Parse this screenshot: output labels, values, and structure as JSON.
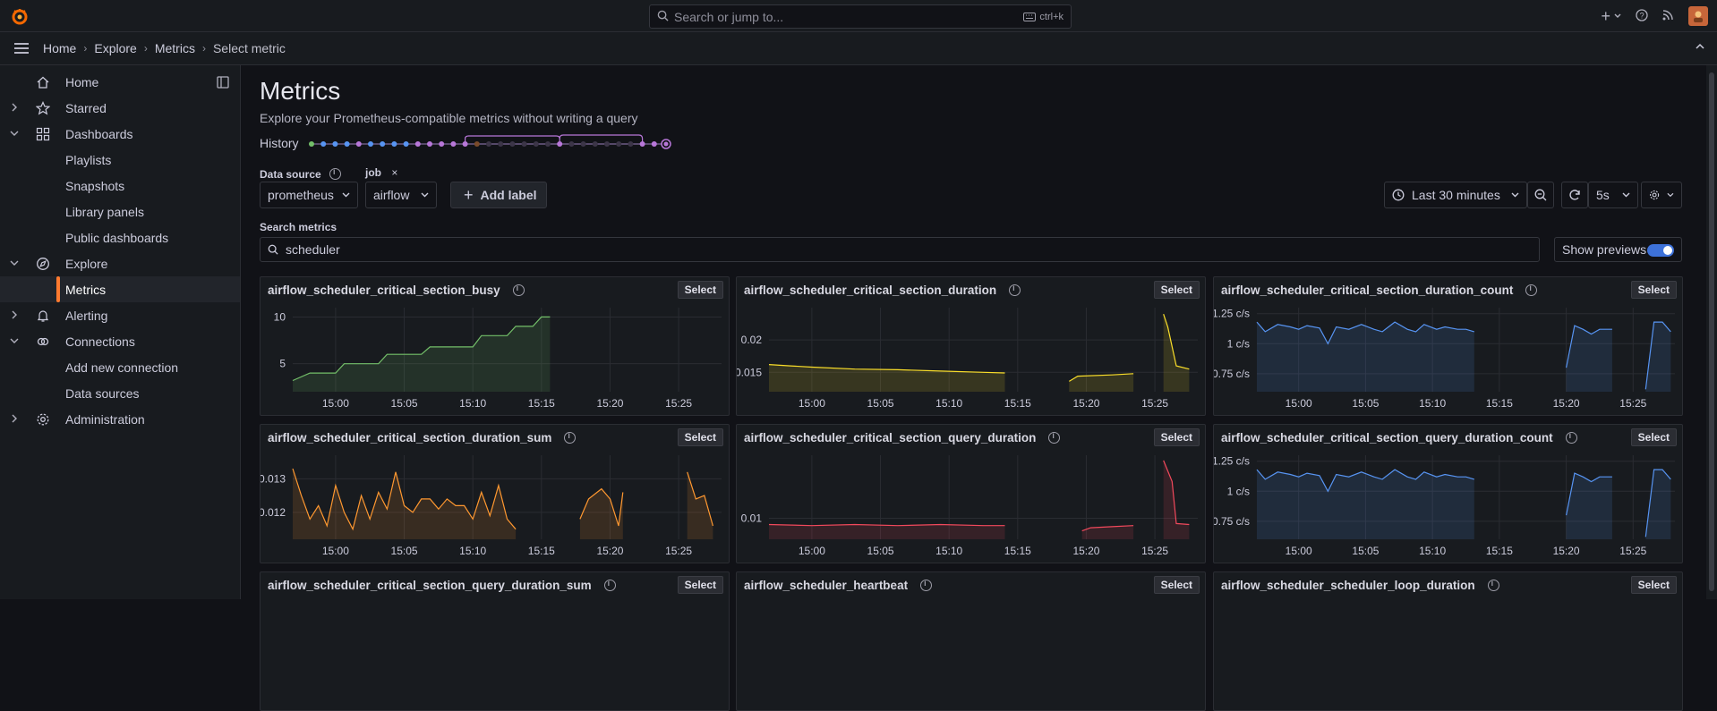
{
  "topbar": {
    "search_placeholder": "Search or jump to...",
    "shortcut": "ctrl+k"
  },
  "breadcrumbs": [
    "Home",
    "Explore",
    "Metrics",
    "Select metric"
  ],
  "sidebar": {
    "items": [
      {
        "label": "Home",
        "icon": "home-icon",
        "level": 0,
        "chevron": "none"
      },
      {
        "label": "Starred",
        "icon": "star-icon",
        "level": 0,
        "chevron": "right"
      },
      {
        "label": "Dashboards",
        "icon": "apps-icon",
        "level": 0,
        "chevron": "down"
      },
      {
        "label": "Playlists",
        "level": 1
      },
      {
        "label": "Snapshots",
        "level": 1
      },
      {
        "label": "Library panels",
        "level": 1
      },
      {
        "label": "Public dashboards",
        "level": 1
      },
      {
        "label": "Explore",
        "icon": "compass-icon",
        "level": 0,
        "chevron": "down"
      },
      {
        "label": "Metrics",
        "level": 1,
        "active": true
      },
      {
        "label": "Alerting",
        "icon": "bell-icon",
        "level": 0,
        "chevron": "right"
      },
      {
        "label": "Connections",
        "icon": "link-icon",
        "level": 0,
        "chevron": "down"
      },
      {
        "label": "Add new connection",
        "level": 1
      },
      {
        "label": "Data sources",
        "level": 1
      },
      {
        "label": "Administration",
        "icon": "cog-icon",
        "level": 0,
        "chevron": "right"
      }
    ]
  },
  "page": {
    "title": "Metrics",
    "subtitle": "Explore your Prometheus-compatible metrics without writing a query",
    "history_label": "History"
  },
  "controls": {
    "datasource_label": "Data source",
    "datasource_value": "prometheus",
    "job_label": "job",
    "job_value": "airflow",
    "add_label": "Add label",
    "time_range": "Last 30 minutes",
    "refresh": "5s",
    "search_label": "Search metrics",
    "search_value": "scheduler",
    "previews_label": "Show previews"
  },
  "panels": [
    {
      "title": "airflow_scheduler_critical_section_busy",
      "select": "Select"
    },
    {
      "title": "airflow_scheduler_critical_section_duration",
      "select": "Select"
    },
    {
      "title": "airflow_scheduler_critical_section_duration_count",
      "select": "Select"
    },
    {
      "title": "airflow_scheduler_critical_section_duration_sum",
      "select": "Select"
    },
    {
      "title": "airflow_scheduler_critical_section_query_duration",
      "select": "Select"
    },
    {
      "title": "airflow_scheduler_critical_section_query_duration_count",
      "select": "Select"
    },
    {
      "title": "airflow_scheduler_critical_section_query_duration_sum",
      "select": "Select"
    },
    {
      "title": "airflow_scheduler_heartbeat",
      "select": "Select"
    },
    {
      "title": "airflow_scheduler_scheduler_loop_duration",
      "select": "Select"
    }
  ],
  "chart_data": [
    {
      "type": "line",
      "color": "#73bf69",
      "x_ticks": [
        "15:00",
        "15:05",
        "15:10",
        "15:15",
        "15:20",
        "15:25"
      ],
      "y_ticks": [
        "10",
        "5"
      ],
      "ylim": [
        2,
        11
      ],
      "segments": [
        [
          [
            0,
            3.2
          ],
          [
            0.04,
            4
          ],
          [
            0.1,
            4
          ],
          [
            0.12,
            5
          ],
          [
            0.2,
            5
          ],
          [
            0.22,
            6
          ],
          [
            0.3,
            6
          ],
          [
            0.32,
            6.8
          ],
          [
            0.42,
            6.8
          ],
          [
            0.44,
            8
          ],
          [
            0.5,
            8
          ],
          [
            0.52,
            9
          ],
          [
            0.56,
            9
          ],
          [
            0.58,
            10
          ],
          [
            0.6,
            10
          ]
        ]
      ]
    },
    {
      "type": "line",
      "color": "#fade2a",
      "x_ticks": [
        "15:00",
        "15:05",
        "15:10",
        "15:15",
        "15:20",
        "15:25"
      ],
      "y_ticks": [
        "0.02",
        "0.015"
      ],
      "ylim": [
        0.012,
        0.025
      ],
      "segments": [
        [
          [
            0,
            0.0162
          ],
          [
            0.05,
            0.016
          ],
          [
            0.1,
            0.0158
          ],
          [
            0.2,
            0.0155
          ],
          [
            0.3,
            0.0154
          ],
          [
            0.4,
            0.0152
          ],
          [
            0.5,
            0.015
          ],
          [
            0.55,
            0.0149
          ]
        ],
        [
          [
            0.7,
            0.0136
          ],
          [
            0.72,
            0.0144
          ],
          [
            0.8,
            0.0146
          ],
          [
            0.85,
            0.0148
          ]
        ],
        [
          [
            0.92,
            0.024
          ],
          [
            0.93,
            0.022
          ],
          [
            0.95,
            0.016
          ],
          [
            0.98,
            0.0155
          ]
        ]
      ]
    },
    {
      "type": "line",
      "color": "#5794f2",
      "x_ticks": [
        "15:00",
        "15:05",
        "15:10",
        "15:15",
        "15:20",
        "15:25"
      ],
      "y_ticks": [
        "1.25 c/s",
        "1 c/s",
        "0.75 c/s"
      ],
      "ylim": [
        0.6,
        1.3
      ],
      "segments": [
        [
          [
            0,
            1.18
          ],
          [
            0.02,
            1.1
          ],
          [
            0.05,
            1.16
          ],
          [
            0.08,
            1.14
          ],
          [
            0.1,
            1.12
          ],
          [
            0.12,
            1.15
          ],
          [
            0.15,
            1.13
          ],
          [
            0.17,
            1.0
          ],
          [
            0.19,
            1.14
          ],
          [
            0.22,
            1.12
          ],
          [
            0.25,
            1.16
          ],
          [
            0.28,
            1.12
          ],
          [
            0.3,
            1.1
          ],
          [
            0.33,
            1.18
          ],
          [
            0.36,
            1.12
          ],
          [
            0.38,
            1.1
          ],
          [
            0.4,
            1.16
          ],
          [
            0.43,
            1.12
          ],
          [
            0.45,
            1.14
          ],
          [
            0.48,
            1.12
          ],
          [
            0.5,
            1.12
          ],
          [
            0.52,
            1.1
          ]
        ],
        [
          [
            0.74,
            0.8
          ],
          [
            0.76,
            1.15
          ],
          [
            0.78,
            1.12
          ],
          [
            0.8,
            1.08
          ],
          [
            0.82,
            1.12
          ],
          [
            0.85,
            1.12
          ]
        ],
        [
          [
            0.93,
            0.62
          ],
          [
            0.95,
            1.18
          ],
          [
            0.97,
            1.18
          ],
          [
            0.99,
            1.1
          ]
        ]
      ]
    },
    {
      "type": "line",
      "color": "#ff9830",
      "x_ticks": [
        "15:00",
        "15:05",
        "15:10",
        "15:15",
        "15:20",
        "15:25"
      ],
      "y_ticks": [
        "0.013",
        "0.012"
      ],
      "ylim": [
        0.0112,
        0.0137
      ],
      "segments": [
        [
          [
            0,
            0.0133
          ],
          [
            0.02,
            0.0125
          ],
          [
            0.04,
            0.0118
          ],
          [
            0.06,
            0.0122
          ],
          [
            0.08,
            0.0116
          ],
          [
            0.1,
            0.0128
          ],
          [
            0.12,
            0.012
          ],
          [
            0.14,
            0.0115
          ],
          [
            0.16,
            0.0125
          ],
          [
            0.18,
            0.0118
          ],
          [
            0.2,
            0.0126
          ],
          [
            0.22,
            0.0121
          ],
          [
            0.24,
            0.0132
          ],
          [
            0.26,
            0.0122
          ],
          [
            0.28,
            0.012
          ],
          [
            0.3,
            0.0124
          ],
          [
            0.32,
            0.0124
          ],
          [
            0.34,
            0.0121
          ],
          [
            0.36,
            0.0124
          ],
          [
            0.38,
            0.0122
          ],
          [
            0.4,
            0.0122
          ],
          [
            0.42,
            0.0118
          ],
          [
            0.44,
            0.0126
          ],
          [
            0.46,
            0.0119
          ],
          [
            0.48,
            0.0128
          ],
          [
            0.5,
            0.0118
          ],
          [
            0.52,
            0.0115
          ]
        ],
        [
          [
            0.67,
            0.0118
          ],
          [
            0.69,
            0.0124
          ],
          [
            0.72,
            0.0127
          ],
          [
            0.74,
            0.0124
          ],
          [
            0.76,
            0.0116
          ],
          [
            0.77,
            0.0126
          ]
        ],
        [
          [
            0.92,
            0.0132
          ],
          [
            0.94,
            0.0124
          ],
          [
            0.96,
            0.0125
          ],
          [
            0.98,
            0.0116
          ]
        ]
      ]
    },
    {
      "type": "line",
      "color": "#f2495c",
      "x_ticks": [
        "15:00",
        "15:05",
        "15:10",
        "15:15",
        "15:20",
        "15:25"
      ],
      "y_ticks": [
        "0.01"
      ],
      "ylim": [
        0.008,
        0.016
      ],
      "segments": [
        [
          [
            0,
            0.0094
          ],
          [
            0.1,
            0.0093
          ],
          [
            0.2,
            0.0094
          ],
          [
            0.3,
            0.0093
          ],
          [
            0.4,
            0.0094
          ],
          [
            0.5,
            0.0093
          ],
          [
            0.55,
            0.0093
          ]
        ],
        [
          [
            0.73,
            0.0088
          ],
          [
            0.75,
            0.0091
          ],
          [
            0.8,
            0.0092
          ],
          [
            0.85,
            0.0093
          ]
        ],
        [
          [
            0.92,
            0.0155
          ],
          [
            0.94,
            0.0135
          ],
          [
            0.95,
            0.0095
          ],
          [
            0.98,
            0.0094
          ]
        ]
      ]
    },
    {
      "type": "line",
      "color": "#5794f2",
      "x_ticks": [
        "15:00",
        "15:05",
        "15:10",
        "15:15",
        "15:20",
        "15:25"
      ],
      "y_ticks": [
        "1.25 c/s",
        "1 c/s",
        "0.75 c/s"
      ],
      "ylim": [
        0.6,
        1.3
      ],
      "segments": [
        [
          [
            0,
            1.18
          ],
          [
            0.02,
            1.1
          ],
          [
            0.05,
            1.16
          ],
          [
            0.08,
            1.14
          ],
          [
            0.1,
            1.12
          ],
          [
            0.12,
            1.15
          ],
          [
            0.15,
            1.13
          ],
          [
            0.17,
            1.0
          ],
          [
            0.19,
            1.14
          ],
          [
            0.22,
            1.12
          ],
          [
            0.25,
            1.16
          ],
          [
            0.28,
            1.12
          ],
          [
            0.3,
            1.1
          ],
          [
            0.33,
            1.18
          ],
          [
            0.36,
            1.12
          ],
          [
            0.38,
            1.1
          ],
          [
            0.4,
            1.16
          ],
          [
            0.43,
            1.12
          ],
          [
            0.45,
            1.14
          ],
          [
            0.48,
            1.12
          ],
          [
            0.5,
            1.12
          ],
          [
            0.52,
            1.1
          ]
        ],
        [
          [
            0.74,
            0.8
          ],
          [
            0.76,
            1.15
          ],
          [
            0.78,
            1.12
          ],
          [
            0.8,
            1.08
          ],
          [
            0.82,
            1.12
          ],
          [
            0.85,
            1.12
          ]
        ],
        [
          [
            0.93,
            0.62
          ],
          [
            0.95,
            1.18
          ],
          [
            0.97,
            1.18
          ],
          [
            0.99,
            1.1
          ]
        ]
      ]
    }
  ]
}
